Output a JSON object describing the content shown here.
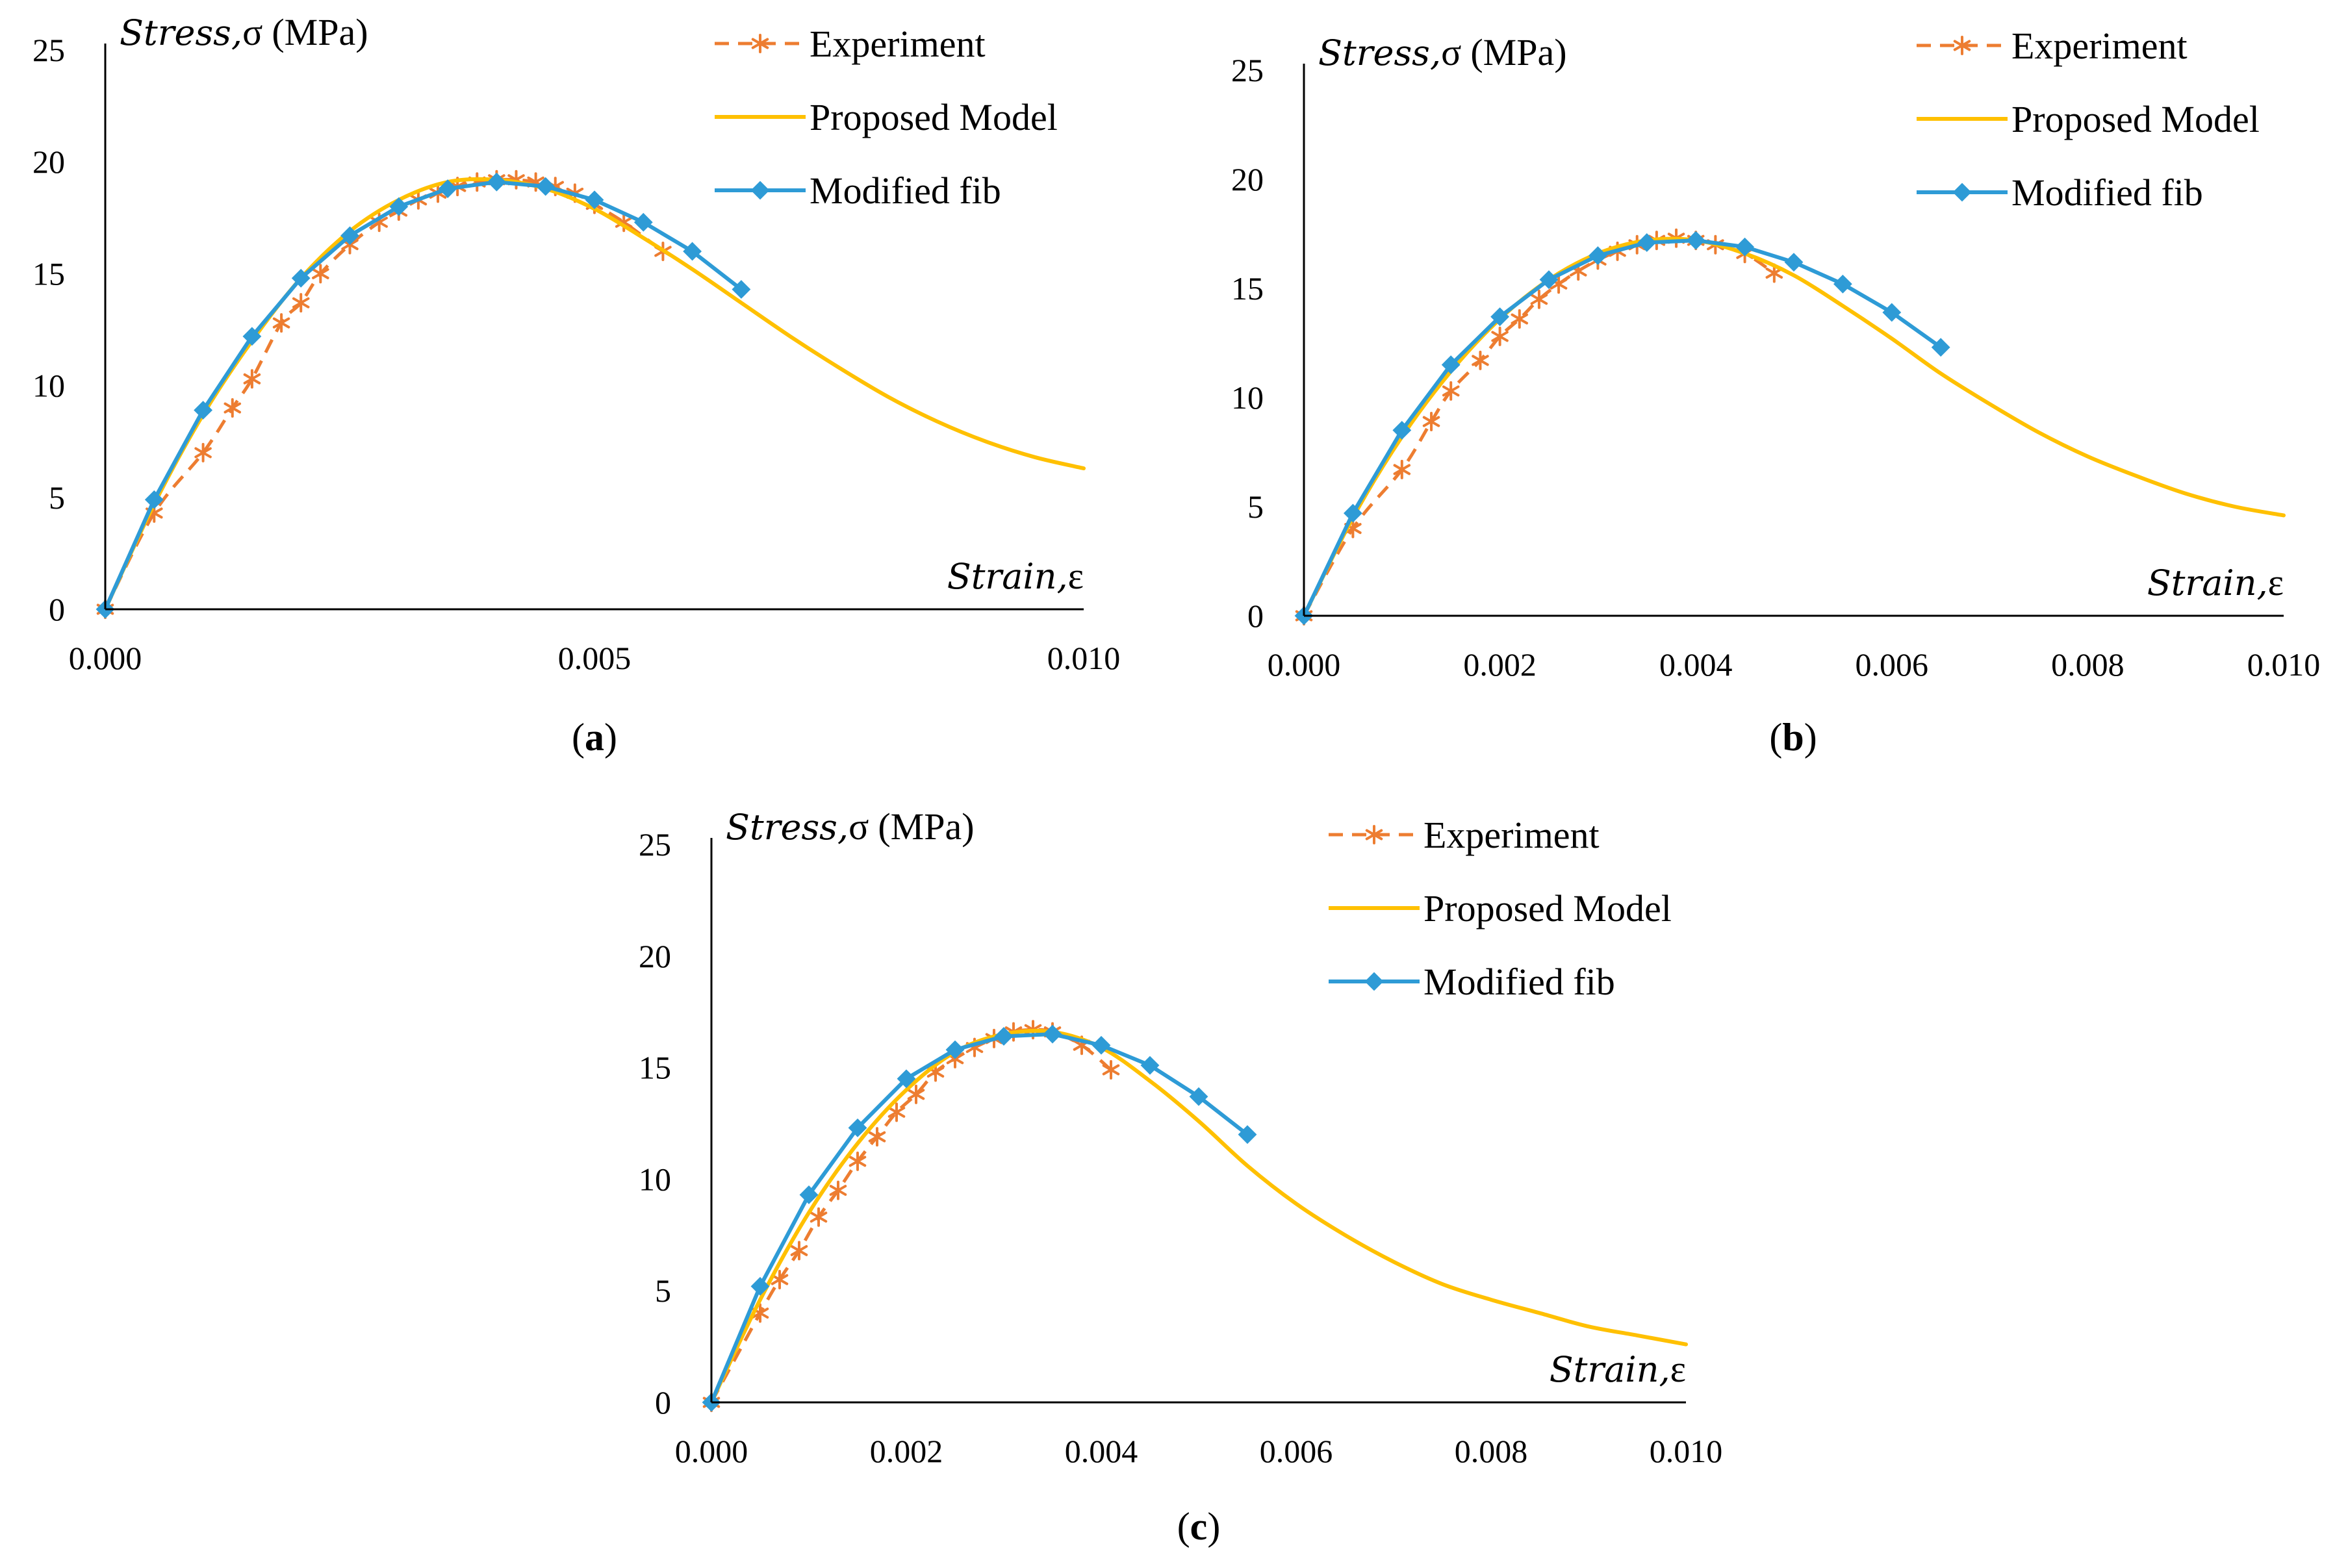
{
  "legend": {
    "experiment": "Experiment",
    "proposed": "Proposed Model",
    "fib": "Modified fib"
  },
  "colors": {
    "experiment": "#ED7D31",
    "proposed": "#FFC000",
    "fib": "#2E9BD6",
    "axis": "#000000"
  },
  "chart_data": [
    {
      "type": "line",
      "panel": "a",
      "panel_label": "a",
      "title": "",
      "ylabel_italic": "Stress,",
      "ylabel_symbol": "σ",
      "ylabel_unit": "(MPa)",
      "xlabel_italic": "Strain,",
      "xlabel_symbol": "ε",
      "xlim": [
        0,
        0.01
      ],
      "ylim": [
        0,
        25
      ],
      "x_ticks": [
        "0.000",
        "0.005",
        "0.010"
      ],
      "x_tick_values": [
        0,
        0.005,
        0.01
      ],
      "y_ticks": [
        "0",
        "5",
        "10",
        "15",
        "20",
        "25"
      ],
      "y_tick_values": [
        0,
        5,
        10,
        15,
        20,
        25
      ],
      "series": [
        {
          "name": "Experiment",
          "style": "dashed-star",
          "x": [
            0,
            0.0005,
            0.001,
            0.0013,
            0.0015,
            0.0018,
            0.002,
            0.0022,
            0.0025,
            0.0028,
            0.003,
            0.0032,
            0.0034,
            0.0036,
            0.0038,
            0.004,
            0.0042,
            0.0044,
            0.0046,
            0.0048,
            0.005,
            0.0053,
            0.0057
          ],
          "y": [
            0,
            4.3,
            7.0,
            9.0,
            10.3,
            12.8,
            13.7,
            15.0,
            16.3,
            17.3,
            17.8,
            18.3,
            18.6,
            18.9,
            19.1,
            19.2,
            19.2,
            19.1,
            18.9,
            18.6,
            18.1,
            17.3,
            16.0
          ]
        },
        {
          "name": "Proposed Model",
          "style": "solid",
          "x": [
            0,
            0.0005,
            0.001,
            0.0015,
            0.002,
            0.0025,
            0.003,
            0.0035,
            0.004,
            0.0045,
            0.005,
            0.0055,
            0.006,
            0.0065,
            0.007,
            0.0075,
            0.008,
            0.0085,
            0.009,
            0.0095,
            0.01
          ],
          "y": [
            0,
            4.7,
            8.7,
            12.0,
            14.8,
            16.9,
            18.3,
            19.1,
            19.2,
            18.8,
            17.9,
            16.6,
            15.2,
            13.7,
            12.2,
            10.8,
            9.5,
            8.4,
            7.5,
            6.8,
            6.3
          ]
        },
        {
          "name": "Modified fib",
          "style": "solid-diamond",
          "x": [
            0,
            0.0005,
            0.001,
            0.0015,
            0.002,
            0.0025,
            0.003,
            0.0035,
            0.004,
            0.0045,
            0.005,
            0.0055,
            0.006,
            0.0065
          ],
          "y": [
            0,
            4.9,
            8.9,
            12.2,
            14.8,
            16.7,
            18.0,
            18.8,
            19.1,
            18.9,
            18.3,
            17.3,
            16.0,
            14.3
          ]
        }
      ]
    },
    {
      "type": "line",
      "panel": "b",
      "panel_label": "b",
      "title": "",
      "ylabel_italic": "Stress,",
      "ylabel_symbol": "σ",
      "ylabel_unit": "(MPa)",
      "xlabel_italic": "Strain,",
      "xlabel_symbol": "ε",
      "xlim": [
        0,
        0.01
      ],
      "ylim": [
        0,
        25
      ],
      "x_ticks": [
        "0.000",
        "0.002",
        "0.004",
        "0.006",
        "0.008",
        "0.010"
      ],
      "x_tick_values": [
        0,
        0.002,
        0.004,
        0.006,
        0.008,
        0.01
      ],
      "y_ticks": [
        "0",
        "5",
        "10",
        "15",
        "20",
        "25"
      ],
      "y_tick_values": [
        0,
        5,
        10,
        15,
        20,
        25
      ],
      "series": [
        {
          "name": "Experiment",
          "style": "dashed-star",
          "x": [
            0,
            0.0005,
            0.001,
            0.0013,
            0.0015,
            0.0018,
            0.002,
            0.0022,
            0.0024,
            0.0026,
            0.0028,
            0.003,
            0.0032,
            0.0034,
            0.0036,
            0.0038,
            0.004,
            0.0042,
            0.0045,
            0.0048
          ],
          "y": [
            0,
            4.0,
            6.7,
            8.9,
            10.3,
            11.7,
            12.8,
            13.6,
            14.5,
            15.2,
            15.8,
            16.3,
            16.7,
            17.0,
            17.2,
            17.3,
            17.2,
            17.0,
            16.6,
            15.7
          ]
        },
        {
          "name": "Proposed Model",
          "style": "solid",
          "x": [
            0,
            0.0005,
            0.001,
            0.0015,
            0.002,
            0.0025,
            0.003,
            0.0035,
            0.004,
            0.0045,
            0.005,
            0.0055,
            0.006,
            0.0065,
            0.007,
            0.0075,
            0.008,
            0.0085,
            0.009,
            0.0095,
            0.01
          ],
          "y": [
            0,
            4.5,
            8.2,
            11.2,
            13.6,
            15.4,
            16.6,
            17.2,
            17.2,
            16.6,
            15.6,
            14.2,
            12.7,
            11.1,
            9.7,
            8.4,
            7.3,
            6.4,
            5.6,
            5.0,
            4.6
          ]
        },
        {
          "name": "Modified fib",
          "style": "solid-diamond",
          "x": [
            0,
            0.0005,
            0.001,
            0.0015,
            0.002,
            0.0025,
            0.003,
            0.0035,
            0.004,
            0.0045,
            0.005,
            0.0055,
            0.006,
            0.0065
          ],
          "y": [
            0,
            4.7,
            8.5,
            11.5,
            13.7,
            15.4,
            16.5,
            17.1,
            17.2,
            16.9,
            16.2,
            15.2,
            13.9,
            12.3
          ]
        }
      ]
    },
    {
      "type": "line",
      "panel": "c",
      "panel_label": "c",
      "title": "",
      "ylabel_italic": "Stress,",
      "ylabel_symbol": "σ",
      "ylabel_unit": "(MPa)",
      "xlabel_italic": "Strain,",
      "xlabel_symbol": "ε",
      "xlim": [
        0,
        0.01
      ],
      "ylim": [
        0,
        25
      ],
      "x_ticks": [
        "0.000",
        "0.002",
        "0.004",
        "0.006",
        "0.008",
        "0.010"
      ],
      "x_tick_values": [
        0,
        0.002,
        0.004,
        0.006,
        0.008,
        0.01
      ],
      "y_ticks": [
        "0",
        "5",
        "10",
        "15",
        "20",
        "25"
      ],
      "y_tick_values": [
        0,
        5,
        10,
        15,
        20,
        25
      ],
      "series": [
        {
          "name": "Experiment",
          "style": "dashed-star",
          "x": [
            0,
            0.0005,
            0.0007,
            0.0009,
            0.0011,
            0.0013,
            0.0015,
            0.0017,
            0.0019,
            0.0021,
            0.0023,
            0.0025,
            0.0027,
            0.0029,
            0.0031,
            0.0033,
            0.0035,
            0.0038,
            0.0041
          ],
          "y": [
            0,
            4.0,
            5.5,
            6.8,
            8.3,
            9.5,
            10.8,
            11.9,
            13.0,
            13.8,
            14.8,
            15.4,
            15.9,
            16.3,
            16.6,
            16.7,
            16.6,
            16.0,
            14.9
          ]
        },
        {
          "name": "Proposed Model",
          "style": "solid",
          "x": [
            0,
            0.0005,
            0.001,
            0.0015,
            0.002,
            0.0025,
            0.003,
            0.0035,
            0.004,
            0.0045,
            0.005,
            0.0055,
            0.006,
            0.0065,
            0.007,
            0.0075,
            0.008,
            0.0085,
            0.009,
            0.0095,
            0.01
          ],
          "y": [
            0,
            4.6,
            8.5,
            11.6,
            14.0,
            15.7,
            16.5,
            16.6,
            15.9,
            14.4,
            12.6,
            10.6,
            8.9,
            7.5,
            6.3,
            5.3,
            4.6,
            4.0,
            3.4,
            3.0,
            2.6
          ]
        },
        {
          "name": "Modified fib",
          "style": "solid-diamond",
          "x": [
            0,
            0.0005,
            0.001,
            0.0015,
            0.002,
            0.0025,
            0.003,
            0.0035,
            0.004,
            0.0045,
            0.005,
            0.0055
          ],
          "y": [
            0,
            5.2,
            9.3,
            12.3,
            14.5,
            15.8,
            16.4,
            16.5,
            16.0,
            15.1,
            13.7,
            12.0
          ]
        }
      ]
    }
  ]
}
